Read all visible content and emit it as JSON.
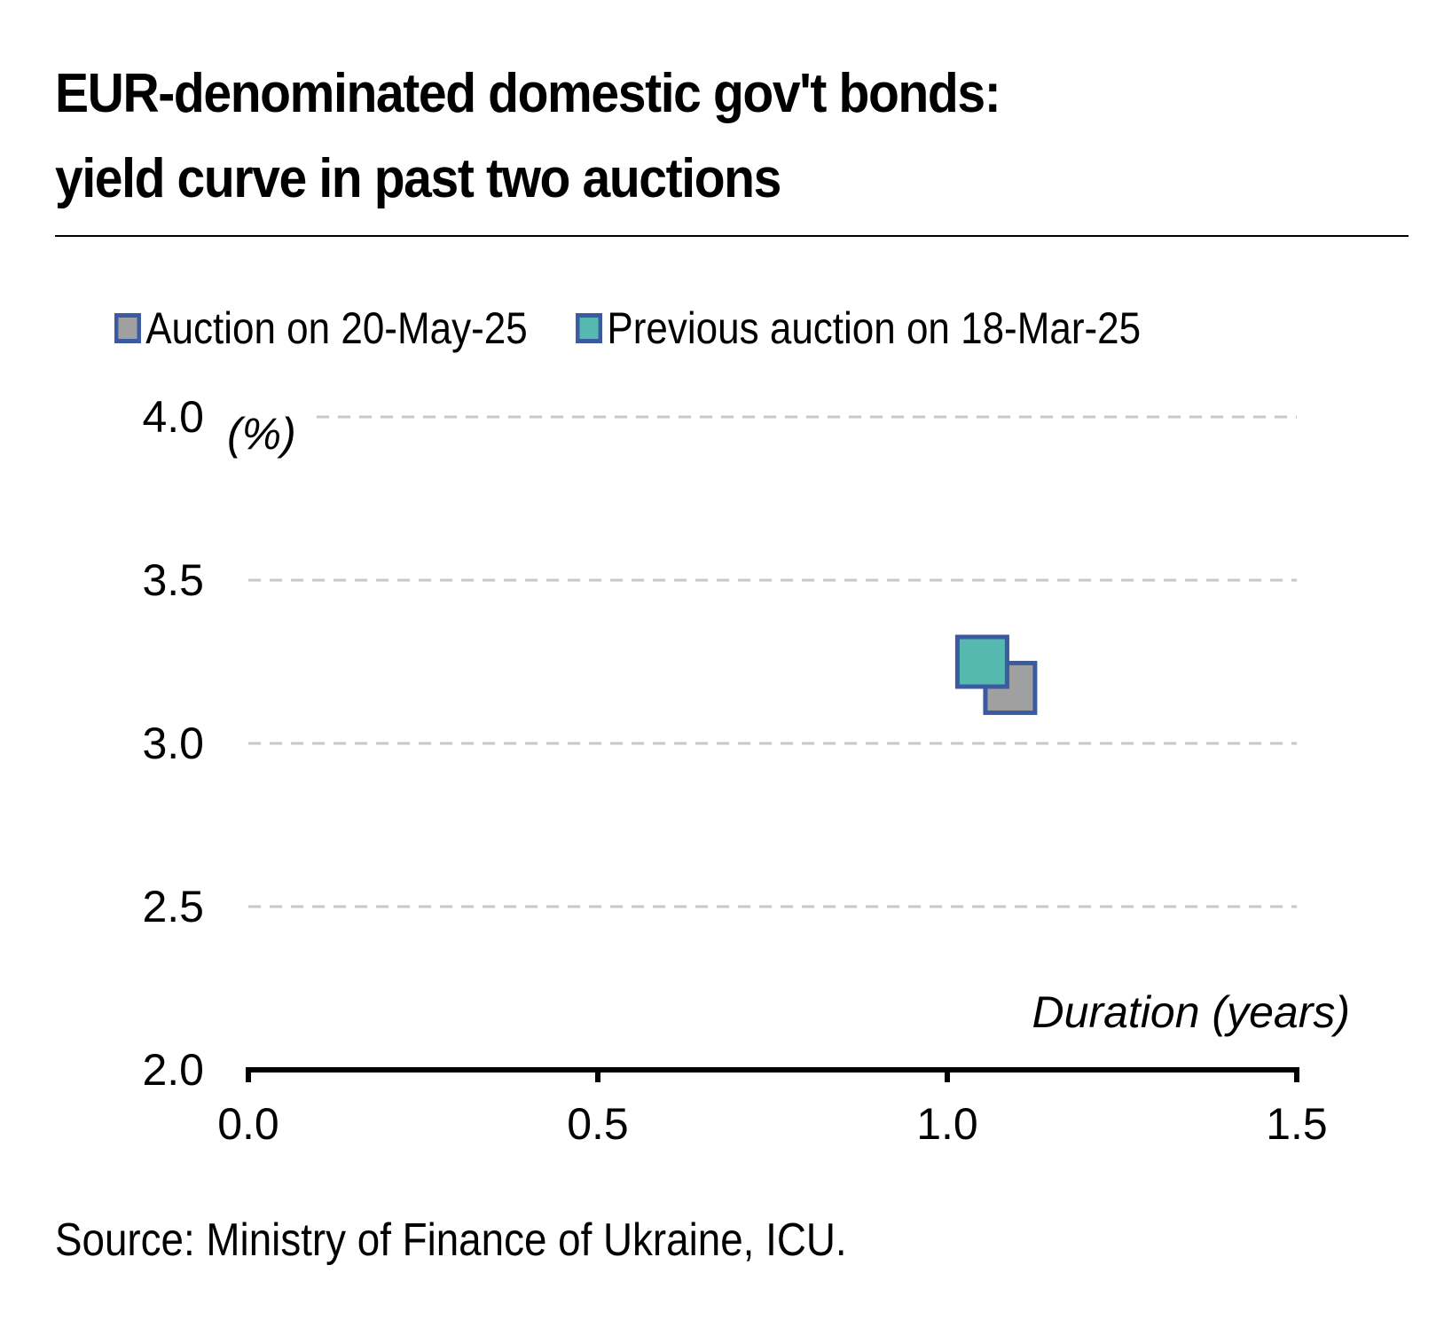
{
  "title_line1": "EUR-denominated domestic gov't bonds:",
  "title_line2": "yield curve in past two auctions",
  "source": "Source: Ministry of Finance of Ukraine, ICU.",
  "chart_data": {
    "type": "scatter",
    "xlabel": "Duration (years)",
    "ylabel": "(%)",
    "xlim": [
      0.0,
      1.5
    ],
    "ylim": [
      2.0,
      4.0
    ],
    "x_ticks": [
      "0.0",
      "0.5",
      "1.0",
      "1.5"
    ],
    "y_ticks": [
      "2.0",
      "2.5",
      "3.0",
      "3.5",
      "4.0"
    ],
    "grid": "horizontal dashed",
    "legend_position": "top",
    "series": [
      {
        "name": "Auction on 20-May-25",
        "marker": "square",
        "color": "#a0a0a0",
        "edge_color": "#3c5aa0",
        "points": [
          {
            "x": 1.09,
            "y": 3.17
          }
        ]
      },
      {
        "name": "Previous auction on 18-Mar-25",
        "marker": "square",
        "color": "#55b9b0",
        "edge_color": "#3c5aa0",
        "points": [
          {
            "x": 1.05,
            "y": 3.25
          }
        ]
      }
    ]
  }
}
